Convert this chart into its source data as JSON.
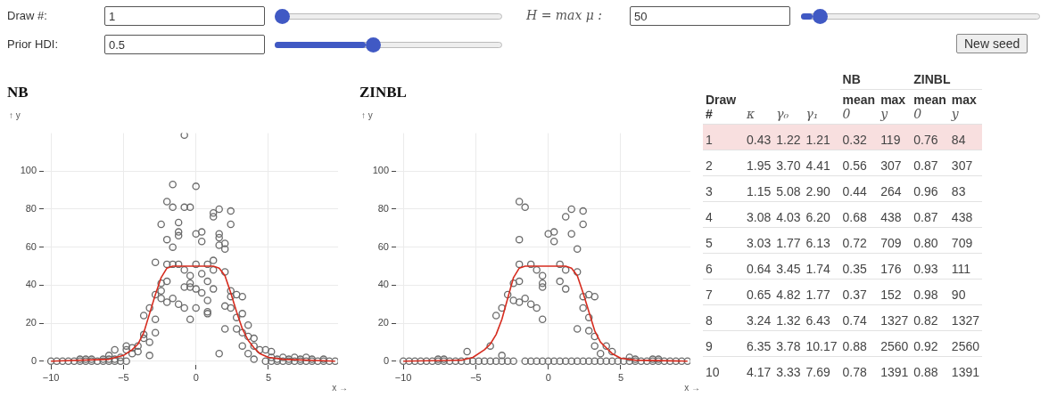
{
  "chart_data": [
    {
      "type": "other",
      "annotations": [
        "Draw #:",
        "1",
        "Prior HDI:",
        "0.5",
        "H = max μ :",
        "50",
        "New seed"
      ]
    },
    {
      "type": "scatter",
      "title": "NB",
      "xlabel": "x →",
      "ylabel": "↑ y",
      "xlim": [
        -10.5,
        9.8
      ],
      "ylim": [
        -2,
        120
      ],
      "xticks": [
        -10,
        -5,
        0,
        5
      ],
      "yticks": [
        0,
        20,
        40,
        60,
        80,
        100
      ],
      "grid": true,
      "series": [
        {
          "type": "scatter",
          "marker": "circle",
          "color": "#6b6b6b",
          "x": [
            -0.8,
            -1.6,
            0,
            -2,
            -1.6,
            -0.8,
            -0.4,
            1.2,
            1.2,
            1.6,
            2.4,
            -2.4,
            -1.2,
            2.4,
            -1.2,
            -1.2,
            0,
            0.4,
            0.4,
            1.6,
            1.6,
            -2,
            -1.6,
            1.6,
            2,
            2,
            -2.8,
            -2,
            -1.6,
            -1.2,
            0,
            0.8,
            1.2,
            -0.8,
            -0.4,
            0.4,
            1.2,
            2,
            -2.4,
            -2,
            -0.4,
            -0.4,
            -0.8,
            0,
            0.4,
            0.8,
            1.2,
            -2.4,
            -2.8,
            -2.4,
            -2,
            -1.6,
            -1.2,
            -0.8,
            0,
            -0.4,
            0.8,
            0.8,
            0.8,
            2.4,
            2.4,
            2.8,
            3.2,
            2,
            2.4,
            2.8,
            3.2,
            3.6,
            2.8,
            2,
            3.2,
            3.2,
            3.6,
            4,
            1.6,
            3.6,
            -3.2,
            -3.6,
            -2.8,
            -2.8,
            -3.2,
            -3.2,
            -3.6,
            -3.6,
            -4,
            -4.4,
            -4.8,
            -4.8,
            -4.4,
            -4,
            -5.6,
            -5.6,
            -5.2,
            -6,
            4,
            4.4,
            4,
            4.8,
            5.2,
            5.2,
            5.6,
            6,
            6.8,
            7.6
          ],
          "values": [
            119,
            93,
            92,
            84,
            81,
            81,
            81,
            78,
            76,
            80,
            79,
            72,
            73,
            72,
            68,
            66,
            67,
            68,
            63,
            67,
            65,
            64,
            60,
            61,
            62,
            59,
            52,
            51,
            51,
            51,
            51,
            51,
            53,
            48,
            45,
            46,
            48,
            47,
            41,
            42,
            41,
            39,
            39,
            38,
            36,
            42,
            38,
            37,
            35,
            33,
            31,
            33,
            30,
            28,
            28,
            22,
            32,
            26,
            25,
            37,
            34,
            35,
            34,
            29,
            28,
            23,
            25,
            19,
            17,
            17,
            15,
            8,
            13,
            12,
            4,
            4,
            28,
            24,
            22,
            15,
            10,
            3,
            14,
            12,
            8,
            7,
            8,
            6,
            4,
            5,
            6,
            1,
            2,
            3,
            8,
            6,
            1,
            6,
            5,
            2,
            1,
            2,
            2,
            2
          ]
        },
        {
          "type": "scatter",
          "marker": "circle",
          "color": "#6b6b6b",
          "x": [
            -10,
            -9.6,
            -9.2,
            -8.8,
            -8.4,
            -8,
            -7.6,
            -7.2,
            -6.8,
            -6.4,
            -6,
            -5.6,
            -5.2,
            -4.8,
            4.8,
            5.2,
            5.6,
            6,
            6.4,
            6.8,
            7.2,
            7.6,
            8,
            8.4,
            8.8,
            9.2,
            9.6,
            -8,
            -7.6,
            -7.2,
            -6.4,
            -6,
            6.4,
            7.2,
            8,
            8.8
          ],
          "values": [
            0,
            0,
            0,
            0,
            0,
            0,
            0,
            0,
            0,
            0,
            0,
            0,
            0,
            0,
            0,
            0,
            0,
            0,
            0,
            0,
            0,
            0,
            0,
            0,
            0,
            0,
            0,
            1,
            1,
            1,
            1,
            1,
            1,
            1,
            1,
            1
          ]
        },
        {
          "type": "line",
          "marker": "none",
          "color": "#d62c1f",
          "x": [
            -10,
            -6,
            -5,
            -4.4,
            -4,
            -3.6,
            -3.2,
            -2.8,
            -2.4,
            -2,
            -1.6,
            1.2,
            1.6,
            2,
            2.4,
            2.8,
            3.2,
            3.6,
            4,
            4.4,
            5,
            6,
            9.6
          ],
          "values": [
            0,
            1,
            3,
            6,
            9,
            15,
            25,
            35,
            44,
            49,
            50,
            50,
            49,
            45,
            36,
            26,
            17,
            11,
            7,
            4,
            2,
            1,
            0
          ]
        }
      ]
    },
    {
      "type": "scatter",
      "title": "ZINBL",
      "xlabel": "x →",
      "ylabel": "↑ y",
      "xlim": [
        -10.5,
        9.8
      ],
      "ylim": [
        -2,
        120
      ],
      "xticks": [
        -10,
        -5,
        0,
        5
      ],
      "yticks": [
        0,
        20,
        40,
        60,
        80,
        100
      ],
      "grid": true,
      "series": [
        {
          "type": "scatter",
          "marker": "circle",
          "color": "#6b6b6b",
          "x": [
            -2,
            -1.6,
            1.6,
            2.4,
            1.2,
            2.4,
            0,
            0.4,
            0.4,
            1.6,
            -2,
            2,
            -2,
            -1.2,
            0.8,
            -0.8,
            -0.4,
            1.2,
            2,
            -2.4,
            -2,
            -0.4,
            -0.4,
            0.8,
            1.2,
            -2.8,
            -2.4,
            -2,
            -1.6,
            -1.2,
            -0.8,
            -0.4,
            -3.2,
            -3.6,
            -4,
            -5.6,
            -3.2,
            2.4,
            2.8,
            3.2,
            2.4,
            2.8,
            2,
            2.8,
            3.2,
            3.2,
            3.6,
            4,
            4.4,
            5.6
          ],
          "values": [
            84,
            81,
            80,
            79,
            76,
            72,
            67,
            68,
            63,
            67,
            64,
            59,
            51,
            51,
            51,
            48,
            45,
            48,
            47,
            41,
            42,
            41,
            39,
            42,
            38,
            35,
            32,
            31,
            33,
            30,
            28,
            22,
            28,
            24,
            8,
            5,
            3,
            34,
            35,
            34,
            28,
            23,
            17,
            16,
            13,
            8,
            4,
            8,
            5,
            2
          ]
        },
        {
          "type": "scatter",
          "marker": "circle",
          "color": "#6b6b6b",
          "x": [
            -10,
            -9.6,
            -9.2,
            -8.8,
            -8.4,
            -8,
            -7.6,
            -7.2,
            -6.8,
            -6.4,
            -6,
            -5.6,
            -5.2,
            -4.8,
            -4.4,
            -4,
            -3.6,
            -3.2,
            -2.8,
            -2.4,
            -1.6,
            -1.2,
            -0.8,
            -0.4,
            0,
            0.4,
            0.8,
            1.2,
            1.6,
            2,
            2.4,
            2.8,
            3.2,
            3.6,
            4,
            4.4,
            4.8,
            5.2,
            5.6,
            6,
            6.4,
            6.8,
            7.2,
            7.6,
            8,
            8.4,
            8.8,
            9.2,
            9.6,
            -7.6,
            -7.2,
            6,
            7.2,
            7.6
          ],
          "values": [
            0,
            0,
            0,
            0,
            0,
            0,
            0,
            0,
            0,
            0,
            0,
            0,
            0,
            0,
            0,
            0,
            0,
            0,
            0,
            0,
            0,
            0,
            0,
            0,
            0,
            0,
            0,
            0,
            0,
            0,
            0,
            0,
            0,
            0,
            0,
            0,
            0,
            0,
            0,
            0,
            0,
            0,
            0,
            0,
            0,
            0,
            0,
            0,
            0,
            1,
            1,
            1,
            1,
            1
          ]
        },
        {
          "type": "line",
          "marker": "none",
          "color": "#d62c1f",
          "x": [
            -10,
            -6,
            -5.2,
            -4.4,
            -4,
            -3.6,
            -3.2,
            -2.8,
            -2.4,
            -2,
            -1.6,
            1.2,
            1.6,
            2,
            2.4,
            2.8,
            3.2,
            3.6,
            4,
            4.4,
            5,
            6,
            9.6
          ],
          "values": [
            0,
            0.5,
            2,
            6,
            9,
            14,
            22,
            33,
            44,
            49,
            50,
            50,
            49,
            45,
            36,
            26,
            16,
            10,
            7,
            4,
            1.5,
            0.5,
            0
          ]
        }
      ]
    },
    {
      "type": "heatmap",
      "ylabel": "Draw #",
      "annotations": [
        "NB",
        "ZINBL"
      ],
      "categories": [
        "κ",
        "γ₀",
        "γ₁",
        "mean 0",
        "max y",
        "mean 0",
        "max y"
      ],
      "y_categories": [
        "1",
        "2",
        "3",
        "4",
        "5",
        "6",
        "7",
        "8",
        "9",
        "10"
      ],
      "cells": [
        [
          0.43,
          1.22,
          1.21,
          0.32,
          119,
          0.76,
          84
        ],
        [
          1.95,
          3.7,
          4.41,
          0.56,
          307,
          0.87,
          307
        ],
        [
          1.15,
          5.08,
          2.9,
          0.44,
          264,
          0.96,
          83
        ],
        [
          3.08,
          4.03,
          6.2,
          0.68,
          438,
          0.87,
          438
        ],
        [
          3.03,
          1.77,
          6.13,
          0.72,
          709,
          0.8,
          709
        ],
        [
          0.64,
          3.45,
          1.74,
          0.35,
          176,
          0.93,
          111
        ],
        [
          0.65,
          4.82,
          1.77,
          0.37,
          152,
          0.98,
          90
        ],
        [
          3.24,
          1.32,
          6.43,
          0.74,
          1327,
          0.82,
          1327
        ],
        [
          6.35,
          3.78,
          10.17,
          0.88,
          2560,
          0.92,
          2560
        ],
        [
          4.17,
          3.33,
          7.69,
          0.78,
          1391,
          0.88,
          1391
        ]
      ],
      "cell_labels": [
        [
          "0.43",
          "1.22",
          "1.21",
          "0.32",
          "119",
          "0.76",
          "84"
        ],
        [
          "1.95",
          "3.70",
          "4.41",
          "0.56",
          "307",
          "0.87",
          "307"
        ],
        [
          "1.15",
          "5.08",
          "2.90",
          "0.44",
          "264",
          "0.96",
          "83"
        ],
        [
          "3.08",
          "4.03",
          "6.20",
          "0.68",
          "438",
          "0.87",
          "438"
        ],
        [
          "3.03",
          "1.77",
          "6.13",
          "0.72",
          "709",
          "0.80",
          "709"
        ],
        [
          "0.64",
          "3.45",
          "1.74",
          "0.35",
          "176",
          "0.93",
          "111"
        ],
        [
          "0.65",
          "4.82",
          "1.77",
          "0.37",
          "152",
          "0.98",
          "90"
        ],
        [
          "3.24",
          "1.32",
          "6.43",
          "0.74",
          "1327",
          "0.82",
          "1327"
        ],
        [
          "6.35",
          "3.78",
          "10.17",
          "0.88",
          "2560",
          "0.92",
          "2560"
        ],
        [
          "4.17",
          "3.33",
          "7.69",
          "0.78",
          "1391",
          "0.88",
          "1391"
        ]
      ]
    }
  ]
}
